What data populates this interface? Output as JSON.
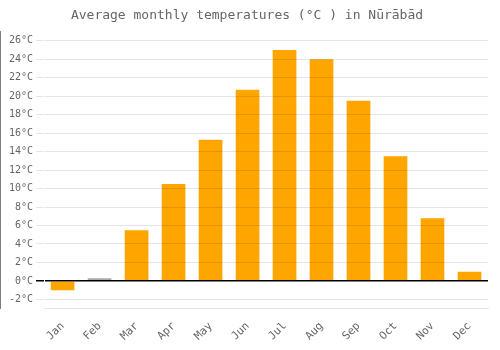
{
  "chart_data": {
    "type": "bar",
    "title": "Average monthly temperatures (°C ) in Nūrābād",
    "categories": [
      "Jan",
      "Feb",
      "Mar",
      "Apr",
      "May",
      "Jun",
      "Jul",
      "Aug",
      "Sep",
      "Oct",
      "Nov",
      "Dec"
    ],
    "values": [
      -1.0,
      0.3,
      5.5,
      10.5,
      15.3,
      20.7,
      25.0,
      24.0,
      19.5,
      13.5,
      6.8,
      1.0
    ],
    "colors": [
      "#FFA500",
      "#aaaaaa",
      "#FFA500",
      "#FFA500",
      "#FFA500",
      "#FFA500",
      "#FFA500",
      "#FFA500",
      "#FFA500",
      "#FFA500",
      "#FFA500",
      "#FFA500"
    ],
    "ylim": [
      -3,
      27
    ],
    "yticks": [
      {
        "value": -2,
        "label": "-2°C"
      },
      {
        "value": 0,
        "label": "0°C"
      },
      {
        "value": 2,
        "label": "2°C"
      },
      {
        "value": 4,
        "label": "4°C"
      },
      {
        "value": 6,
        "label": "6°C"
      },
      {
        "value": 8,
        "label": "8°C"
      },
      {
        "value": 10,
        "label": "10°C"
      },
      {
        "value": 12,
        "label": "12°C"
      },
      {
        "value": 14,
        "label": "14°C"
      },
      {
        "value": 16,
        "label": "16°C"
      },
      {
        "value": 18,
        "label": "18°C"
      },
      {
        "value": 20,
        "label": "20°C"
      },
      {
        "value": 22,
        "label": "22°C"
      },
      {
        "value": 24,
        "label": "24°C"
      },
      {
        "value": 26,
        "label": "26°C"
      }
    ],
    "grid": true
  }
}
